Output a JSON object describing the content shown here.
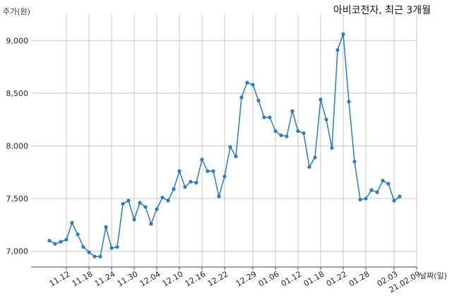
{
  "chart_data": {
    "type": "line",
    "title": "아비코전자, 최근 3개월",
    "ylabel": "주가(원)",
    "xlabel": "날짜(일)",
    "ylim": [
      6850,
      9250
    ],
    "yticks": [
      7000,
      7500,
      8000,
      8500,
      9000
    ],
    "ytick_labels": [
      "7,000",
      "7,500",
      "8,000",
      "8,500",
      "9,000"
    ],
    "xtick_labels": [
      "11.12",
      "11.18",
      "11.24",
      "11.30",
      "12.04",
      "12.10",
      "12.16",
      "12.22",
      "12.29",
      "01.06",
      "01.12",
      "01.18",
      "01.22",
      "01.28",
      "02.03",
      "21.02.09"
    ],
    "xtick_positions": [
      3,
      7,
      11,
      15,
      19,
      23,
      27,
      31,
      36,
      40,
      44,
      48,
      52,
      56,
      61,
      65
    ],
    "grid": true,
    "series": [
      {
        "color": "#2e7bb5",
        "values": [
          7100,
          7070,
          7090,
          7110,
          7270,
          7160,
          7040,
          6990,
          6950,
          6950,
          7230,
          7030,
          7040,
          7450,
          7480,
          7300,
          7460,
          7420,
          7260,
          7400,
          7510,
          7480,
          7590,
          7760,
          7610,
          7660,
          7650,
          7870,
          7760,
          7760,
          7520,
          7710,
          7990,
          7900,
          8460,
          8600,
          8580,
          8430,
          8270,
          8270,
          8140,
          8100,
          8090,
          8330,
          8140,
          8120,
          7800,
          7890,
          8440,
          8250,
          7980,
          8910,
          9060,
          8420,
          7850,
          7490,
          7500,
          7580,
          7560,
          7670,
          7640,
          7480,
          7520
        ]
      }
    ]
  }
}
